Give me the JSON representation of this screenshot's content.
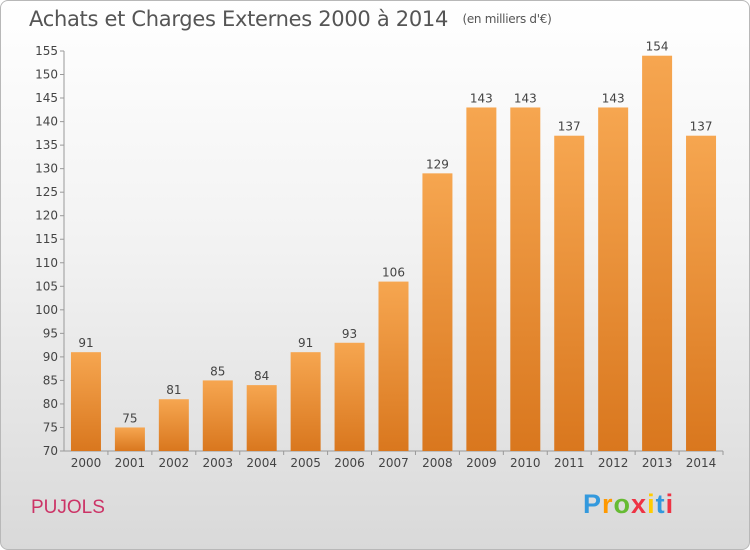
{
  "header": {
    "title": "Achats et Charges Externes 2000 à 2014",
    "subtitle": "(en milliers d'€)"
  },
  "footer": {
    "commune": "PUJOLS",
    "logo": "Proxiti"
  },
  "colors": {
    "bar_top": "#f6a650",
    "bar_bottom": "#d9771e",
    "commune": "#cc3366"
  },
  "chart_data": {
    "type": "bar",
    "title": "Achats et Charges Externes 2000 à 2014",
    "subtitle": "(en milliers d'€)",
    "xlabel": "",
    "ylabel": "",
    "categories": [
      "2000",
      "2001",
      "2002",
      "2003",
      "2004",
      "2005",
      "2006",
      "2007",
      "2008",
      "2009",
      "2010",
      "2011",
      "2012",
      "2013",
      "2014"
    ],
    "values": [
      91,
      75,
      81,
      85,
      84,
      91,
      93,
      106,
      129,
      143,
      143,
      137,
      143,
      154,
      137
    ],
    "ylim": [
      70,
      155
    ],
    "yticks": [
      70,
      75,
      80,
      85,
      90,
      95,
      100,
      105,
      110,
      115,
      120,
      125,
      130,
      135,
      140,
      145,
      150,
      155
    ],
    "grid": false,
    "data_labels": true
  }
}
